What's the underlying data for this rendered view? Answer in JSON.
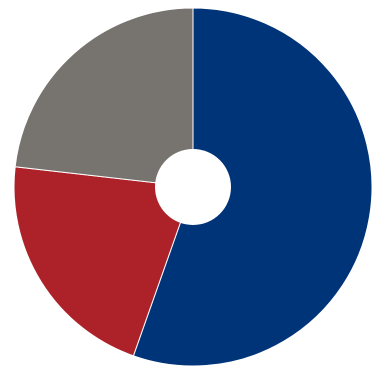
{
  "chart_data": {
    "type": "pie",
    "donut": true,
    "start_angle_deg": 0,
    "direction": "clockwise",
    "slices": [
      {
        "value": 55.4,
        "color": "#003478"
      },
      {
        "value": 21.4,
        "color": "#AD2229"
      },
      {
        "value": 23.2,
        "color": "#77736F"
      }
    ],
    "title": "",
    "legend": "none",
    "data_labels": false
  }
}
